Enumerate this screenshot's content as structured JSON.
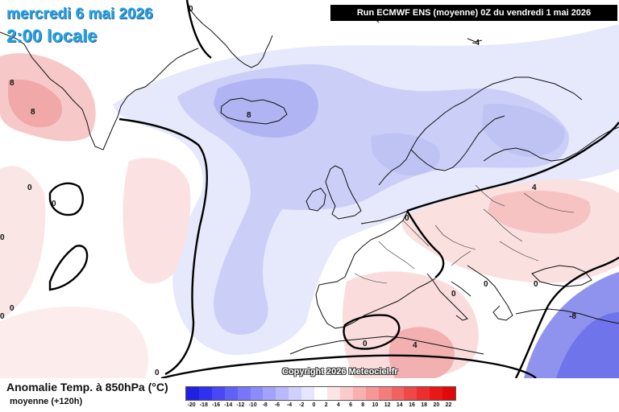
{
  "header": {
    "date": "mercredi 6 mai 2026",
    "time": "2:00 locale",
    "run": "Run ECMWF ENS (moyenne) 0Z du vendredi 1 mai 2026"
  },
  "copyright": "Copyright 2026 Meteociel.fr",
  "legend": {
    "title": "Anomalie Temp. à 850hPa (°C)",
    "subtitle": "moyenne   (+120h)",
    "ticks": [
      "-20",
      "-18",
      "-16",
      "-14",
      "-12",
      "-10",
      "-8",
      "-6",
      "-4",
      "-2",
      "0",
      "2",
      "4",
      "6",
      "8",
      "10",
      "12",
      "14",
      "16",
      "18",
      "20",
      "22"
    ],
    "colors": [
      "#2020e0",
      "#3030f0",
      "#4848f4",
      "#5f60f4",
      "#7676f6",
      "#8c8cf8",
      "#a2a2fa",
      "#b8b8fb",
      "#cfd0fd",
      "#e4e6fe",
      "#ffffff",
      "#fde4e4",
      "#fbcaca",
      "#f8b0b0",
      "#f69696",
      "#f37c7c",
      "#f06262",
      "#ee4848",
      "#eb2e2e",
      "#e81818",
      "#e00808"
    ]
  },
  "contour_labels": [
    "8",
    "8",
    "0",
    "0",
    "0",
    "0",
    "0",
    "8",
    "-4",
    "4",
    "0",
    "0",
    "0",
    "0",
    "0",
    "4",
    "-8",
    "0",
    "0"
  ],
  "colors": {
    "neg_light": "#e3e5fb",
    "neg_mid": "#c9ccf7",
    "neg_deep": "#a7abf1",
    "pos_light": "#fbe2e2",
    "pos_mid": "#f6c0c0",
    "pos_deep": "#ef9a9a",
    "coast": "#111111",
    "contour": "#000000"
  }
}
